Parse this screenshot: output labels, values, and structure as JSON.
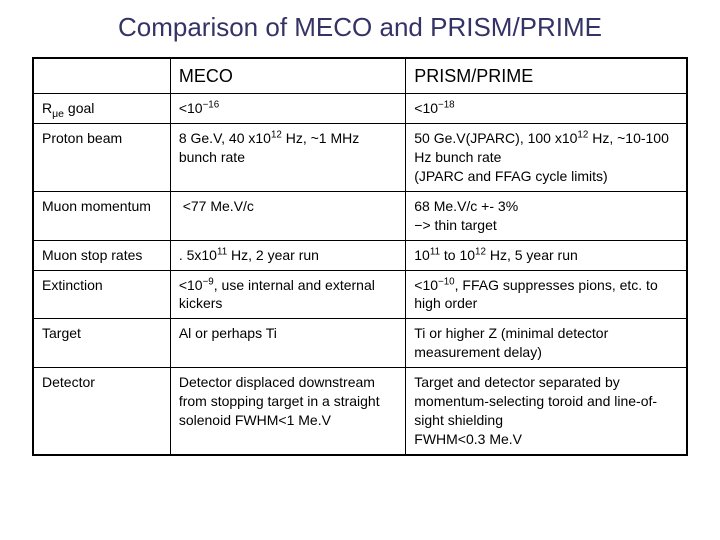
{
  "title": "Comparison of MECO and PRISM/PRIME",
  "header": {
    "c1": "",
    "c2": "MECO",
    "c3": "PRISM/PRIME"
  },
  "rows": [
    {
      "c1": "R<sub>μe</sub> goal",
      "c2": "<10<sup>−16</sup>",
      "c3": "<10<sup>−18</sup>"
    },
    {
      "c1": "Proton beam",
      "c2": "8 Ge.V, 40 x10<sup>12</sup> Hz, ~1 MHz bunch rate",
      "c3": "50 Ge.V(JPARC), 100 x10<sup>12</sup> Hz, ~10-100 Hz bunch rate<br>(JPARC and FFAG cycle limits)"
    },
    {
      "c1": "Muon momentum",
      "c2": "&nbsp;<77 Me.V/c",
      "c3": "68 Me.V/c +- 3%<br>−> thin target"
    },
    {
      "c1": "Muon stop rates",
      "c2": ". 5x10<sup>11</sup> Hz, 2 year run",
      "c3": "10<sup>11</sup> to 10<sup>12</sup> Hz, 5 year run"
    },
    {
      "c1": "Extinction",
      "c2": "<10<sup>−9</sup>, use internal and external kickers",
      "c3": "<10<sup>−10</sup>, FFAG suppresses pions, etc. to high order"
    },
    {
      "c1": "Target",
      "c2": "Al or perhaps Ti",
      "c3": "Ti or higher Z (minimal detector measurement delay)"
    },
    {
      "c1": "Detector",
      "c2": "Detector displaced downstream from stopping target in a straight solenoid FWHM<1 Me.V",
      "c3": "Target and detector separated by momentum-selecting toroid and line-of-sight shielding<br>FWHM<0.3 Me.V"
    }
  ],
  "styling": {
    "title_color": "#333366",
    "title_fontsize": 26,
    "body_fontsize": 14,
    "header_fontsize": 18,
    "border_color": "#000000",
    "background_color": "#ffffff",
    "column_widths_pct": [
      21,
      36,
      43
    ]
  }
}
